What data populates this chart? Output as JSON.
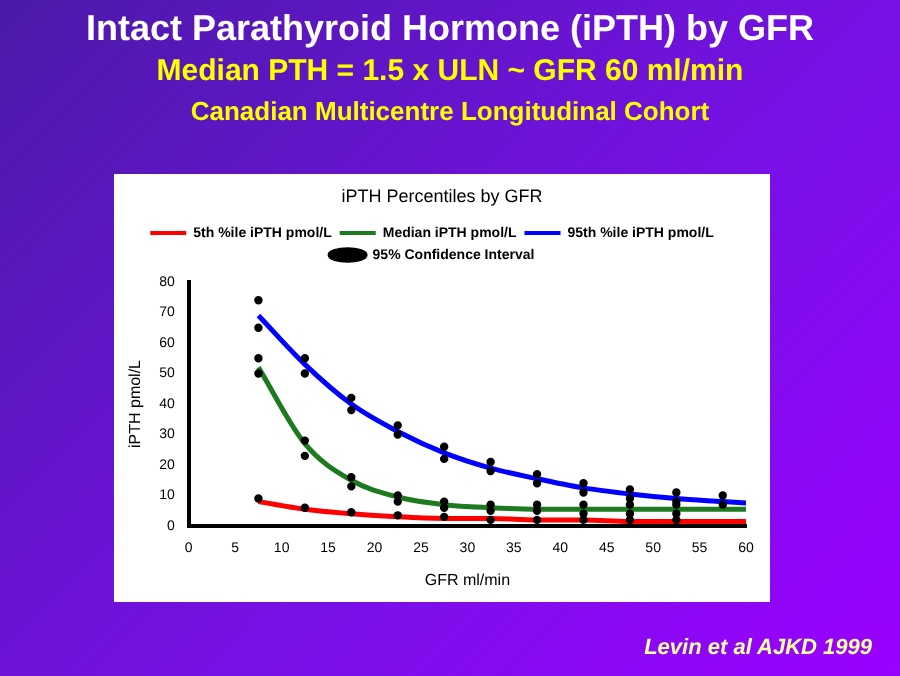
{
  "chart_data": {
    "type": "line",
    "title": "Intact Parathyroid Hormone (iPTH)  by GFR",
    "subtitle": "Median PTH = 1.5 x ULN ~ GFR 60 ml/min",
    "annotations": [
      "Canadian Multicentre Longitudinal Cohort",
      "iPTH Percentiles by GFR",
      "Levin et al AJKD 1999"
    ],
    "xlabel": "GFR ml/min",
    "ylabel": "iPTH pmol/L",
    "xlim": [
      0,
      60
    ],
    "xticks": [
      0,
      5,
      10,
      15,
      20,
      25,
      30,
      35,
      40,
      45,
      50,
      55,
      60
    ],
    "ylim": [
      0,
      80
    ],
    "yticks": [
      0,
      10,
      20,
      30,
      40,
      50,
      60,
      70,
      80
    ],
    "grid": false,
    "legend": "top",
    "line_style": "solid",
    "series": [
      {
        "name": "5th %ile iPTH pmol/L",
        "color": "#ff0000",
        "x": [
          7.5,
          12.5,
          17.5,
          22.5,
          27.5,
          32.5,
          37.5,
          42.5,
          47.5,
          52.5,
          57.5,
          60
        ],
        "values": [
          8,
          5.5,
          4,
          3,
          2.5,
          2.5,
          2,
          2,
          1.5,
          1.5,
          1.5,
          1.5
        ]
      },
      {
        "name": "Median iPTH pmol/L",
        "color": "#1e7a1e",
        "x": [
          7.5,
          12.5,
          17.5,
          22.5,
          27.5,
          32.5,
          37.5,
          42.5,
          47.5,
          52.5,
          57.5,
          60
        ],
        "values": [
          52,
          27,
          15,
          9.5,
          7,
          6,
          5.5,
          5.5,
          5.5,
          5.5,
          5.5,
          5.5
        ]
      },
      {
        "name": "95th %ile iPTH pmol/L",
        "color": "#0000ff",
        "x": [
          7.5,
          12.5,
          17.5,
          22.5,
          27.5,
          32.5,
          37.5,
          42.5,
          47.5,
          52.5,
          57.5,
          60
        ],
        "values": [
          69,
          53,
          40,
          31,
          24,
          19,
          15.5,
          12.5,
          10.5,
          9,
          8,
          7.5
        ]
      },
      {
        "name": "95% Confidence Interval",
        "type": "scatter",
        "marker": "circle",
        "color": "#000000",
        "x": [
          7.5,
          7.5,
          12.5,
          12.5,
          17.5,
          17.5,
          22.5,
          22.5,
          27.5,
          27.5,
          32.5,
          32.5,
          37.5,
          37.5,
          42.5,
          42.5,
          47.5,
          47.5,
          52.5,
          52.5,
          57.5,
          57.5,
          7.5,
          7.5,
          12.5,
          12.5,
          17.5,
          17.5,
          22.5,
          22.5,
          27.5,
          27.5,
          32.5,
          32.5,
          37.5,
          37.5,
          42.5,
          42.5,
          47.5,
          47.5,
          52.5,
          52.5,
          7.5,
          12.5,
          17.5,
          22.5,
          27.5,
          32.5,
          37.5,
          42.5,
          47.5,
          52.5
        ],
        "values": [
          74,
          65,
          55,
          50,
          42,
          38,
          33,
          30,
          26,
          22,
          21,
          18,
          17,
          14,
          14,
          11,
          12,
          9,
          11,
          8,
          10,
          7,
          55,
          50,
          28,
          23,
          16,
          13,
          10,
          8,
          8,
          6,
          7,
          5,
          7,
          5,
          7,
          4,
          7,
          4,
          7,
          4,
          9,
          6,
          4.5,
          3.5,
          3,
          2,
          2,
          2,
          2,
          2
        ]
      }
    ]
  }
}
